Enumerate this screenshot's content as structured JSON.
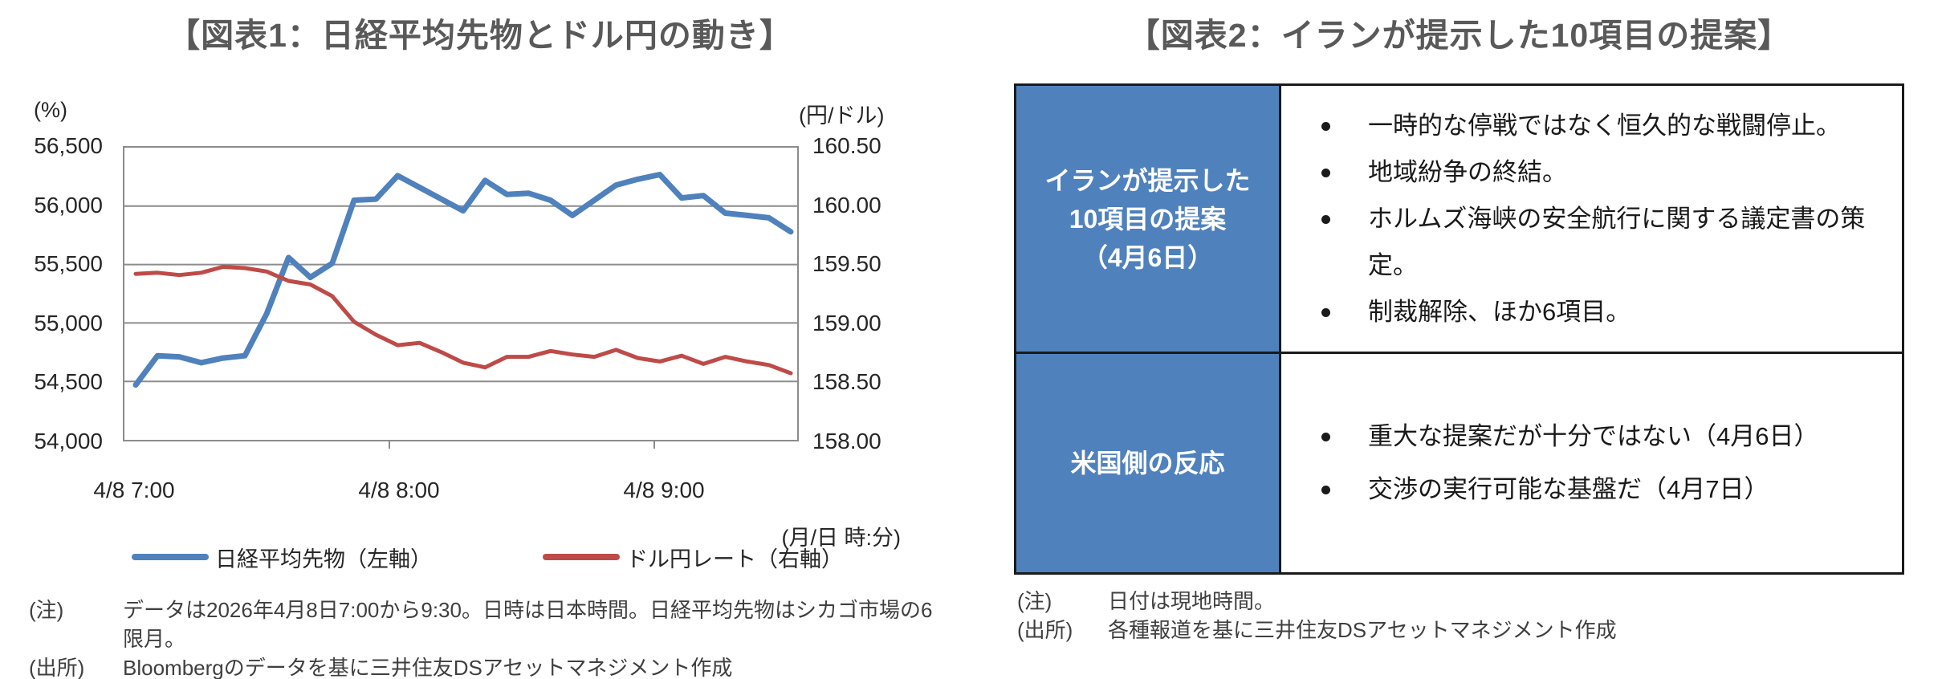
{
  "fig1": {
    "title": "【図表1：日経平均先物とドル円の動き】",
    "left_axis_unit": "(%)",
    "right_axis_unit": "(円/ドル)",
    "x_axis_note": "(月/日 時:分)",
    "legend": [
      {
        "label": "日経平均先物（左軸）",
        "color": "#4f81bd"
      },
      {
        "label": "ドル円レート（右軸）",
        "color": "#be4b48"
      }
    ],
    "notes": [
      {
        "label": "(注)",
        "text": "データは2026年4月8日7:00から9:30。日時は日本時間。日経平均先物はシカゴ市場の6限月。"
      },
      {
        "label": "(出所)",
        "text": "Bloombergのデータを基に三井住友DSアセットマネジメント作成"
      }
    ]
  },
  "chart_data": {
    "type": "line",
    "x": [
      "4/8 7:00",
      "4/8 7:05",
      "4/8 7:10",
      "4/8 7:15",
      "4/8 7:20",
      "4/8 7:25",
      "4/8 7:30",
      "4/8 7:35",
      "4/8 7:40",
      "4/8 7:45",
      "4/8 7:50",
      "4/8 7:55",
      "4/8 8:00",
      "4/8 8:05",
      "4/8 8:10",
      "4/8 8:15",
      "4/8 8:20",
      "4/8 8:25",
      "4/8 8:30",
      "4/8 8:35",
      "4/8 8:40",
      "4/8 8:45",
      "4/8 8:50",
      "4/8 8:55",
      "4/8 9:00",
      "4/8 9:05",
      "4/8 9:10",
      "4/8 9:15",
      "4/8 9:20",
      "4/8 9:25",
      "4/8 9:30"
    ],
    "x_tick_labels": [
      "4/8 7:00",
      "4/8 8:00",
      "4/8 9:00"
    ],
    "series": [
      {
        "name": "日経平均先物（左軸）",
        "axis": "left",
        "color": "#4f81bd",
        "stroke_width": 7,
        "values": [
          54470,
          54720,
          54710,
          54660,
          54700,
          54720,
          55080,
          55560,
          55390,
          55510,
          56050,
          56060,
          56260,
          56160,
          56060,
          55960,
          56220,
          56100,
          56110,
          56050,
          55920,
          56050,
          56180,
          56230,
          56270,
          56070,
          56090,
          55940,
          55920,
          55900,
          55780
        ]
      },
      {
        "name": "ドル円レート（右軸）",
        "axis": "right",
        "color": "#be4b48",
        "stroke_width": 5,
        "values": [
          159.42,
          159.43,
          159.41,
          159.43,
          159.48,
          159.47,
          159.44,
          159.36,
          159.33,
          159.23,
          159.01,
          158.9,
          158.81,
          158.83,
          158.75,
          158.66,
          158.62,
          158.71,
          158.71,
          158.76,
          158.73,
          158.71,
          158.77,
          158.7,
          158.67,
          158.72,
          158.65,
          158.71,
          158.67,
          158.64,
          158.57
        ]
      }
    ],
    "left_axis": {
      "unit": "(%)",
      "min": 54000,
      "max": 56500,
      "step": 500,
      "tick_labels": [
        "56,500",
        "56,000",
        "55,500",
        "55,000",
        "54,500",
        "54,000"
      ]
    },
    "right_axis": {
      "unit": "(円/ドル)",
      "min": 158.0,
      "max": 160.5,
      "step": 0.5,
      "tick_labels": [
        "160.50",
        "160.00",
        "159.50",
        "159.00",
        "158.50",
        "158.00"
      ]
    },
    "grid": true,
    "legend_position": "bottom",
    "grid_color": "#8c8c8c"
  },
  "fig2": {
    "title": "【図表2：イランが提示した10項目の提案】",
    "table": {
      "header_bg": "#4f81bd",
      "rows": [
        {
          "header_lines": [
            "イランが提示した",
            "10項目の提案",
            "（4月6日）"
          ],
          "bullets": [
            "一時的な停戦ではなく恒久的な戦闘停止。",
            "地域紛争の終結。",
            "ホルムズ海峡の安全航行に関する議定書の策定。",
            "制裁解除、ほか6項目。"
          ]
        },
        {
          "header_lines": [
            "米国側の反応"
          ],
          "bullets": [
            "重大な提案だが十分ではない（4月6日）",
            "交渉の実行可能な基盤だ（4月7日）"
          ]
        }
      ]
    },
    "notes": [
      {
        "label": "(注)",
        "text": "日付は現地時間。"
      },
      {
        "label": "(出所)",
        "text": "各種報道を基に三井住友DSアセットマネジメント作成"
      }
    ]
  },
  "colors": {
    "title_text": "#595959",
    "nikkei_line": "#4f81bd",
    "usdjpy_line": "#be4b48",
    "table_header_bg": "#4f81bd",
    "grid": "#8c8c8c"
  }
}
